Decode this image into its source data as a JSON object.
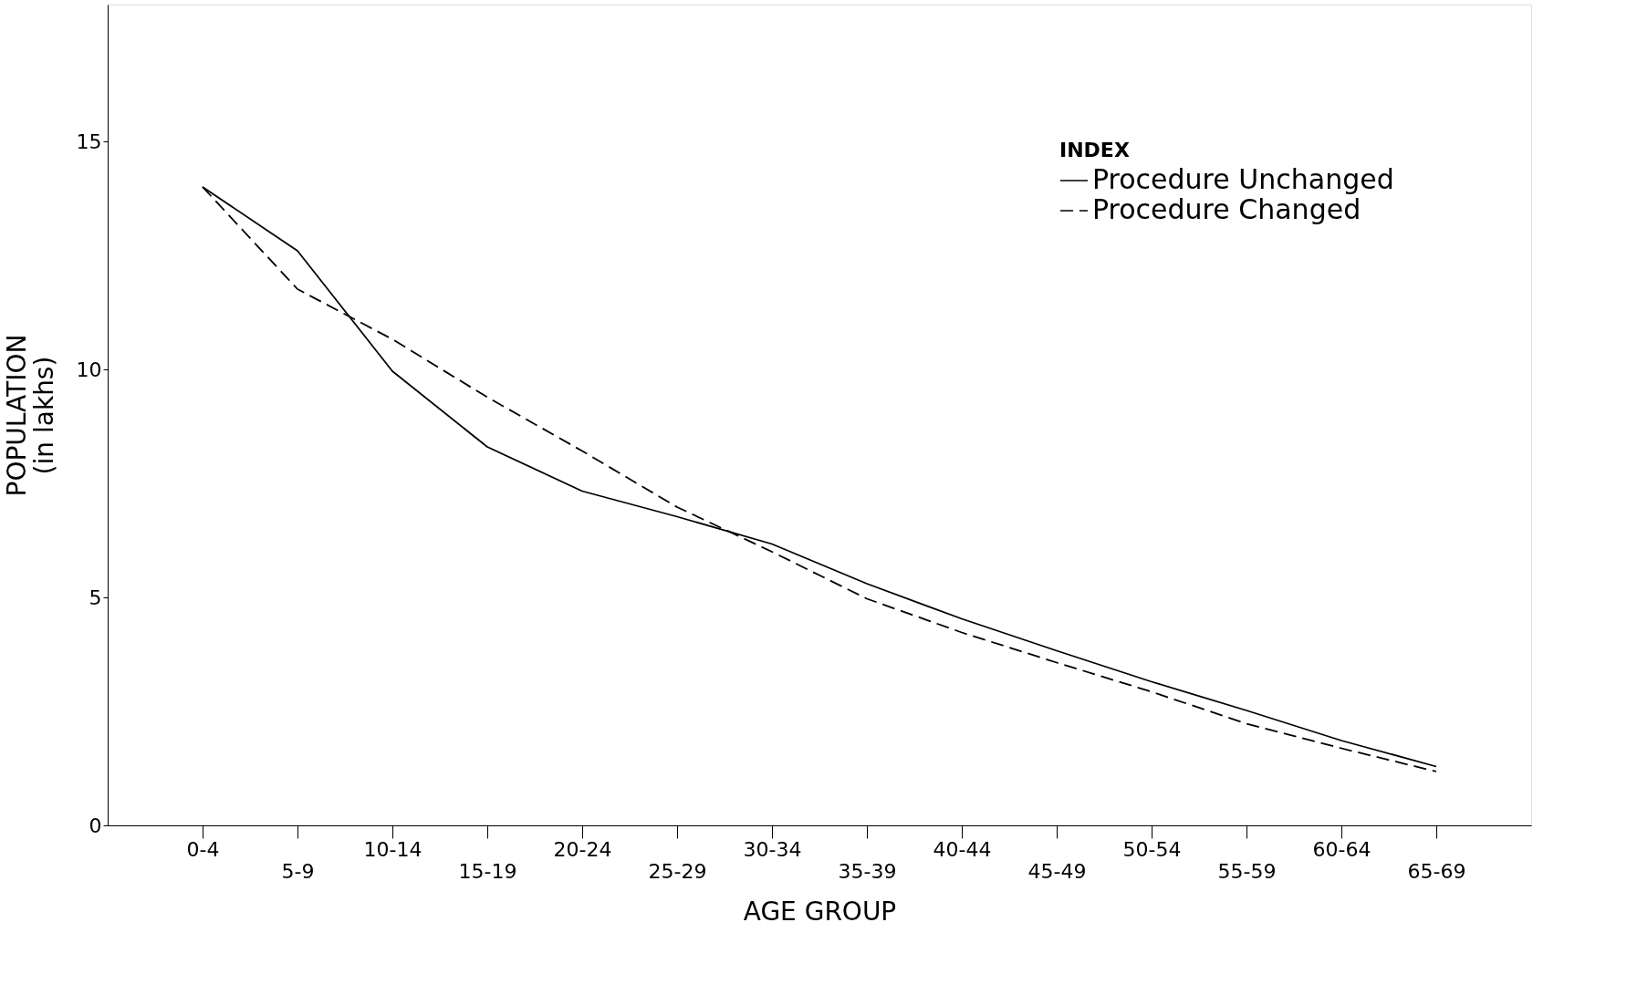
{
  "chart_data": {
    "type": "line",
    "xlabel": "AGE GROUP",
    "ylabel": "POPULATION\n(in lakhs)",
    "legend_title": "INDEX",
    "legend": "top right",
    "grid": false,
    "line_style": "solid",
    "marker": "none",
    "categories": [
      "0-4",
      "5-9",
      "10-14",
      "15-19",
      "20-24",
      "25-29",
      "30-34",
      "35-39",
      "40-44",
      "45-49",
      "50-54",
      "55-59",
      "60-64",
      "65-69"
    ],
    "ylim": [
      0,
      18
    ],
    "yticks": [
      0,
      5,
      10,
      15
    ],
    "series": [
      {
        "name": "Procedure Unchanged",
        "color": "#000000",
        "values": [
          14.0,
          12.6,
          9.96,
          8.3,
          7.33,
          6.77,
          6.17,
          5.3,
          4.53,
          3.83,
          3.15,
          2.52,
          1.86,
          1.29
        ]
      },
      {
        "name": "Procedure Changed",
        "color": "#000000",
        "line_style": "dashed",
        "values": [
          14.0,
          11.76,
          10.66,
          9.39,
          8.21,
          6.98,
          6.0,
          4.97,
          4.23,
          3.57,
          2.93,
          2.23,
          1.69,
          1.18
        ]
      }
    ]
  }
}
